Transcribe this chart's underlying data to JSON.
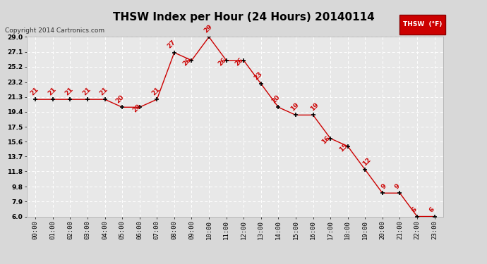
{
  "title": "THSW Index per Hour (24 Hours) 20140114",
  "copyright": "Copyright 2014 Cartronics.com",
  "legend_label": "THSW  (°F)",
  "hours": [
    0,
    1,
    2,
    3,
    4,
    5,
    6,
    7,
    8,
    9,
    10,
    11,
    12,
    13,
    14,
    15,
    16,
    17,
    18,
    19,
    20,
    21,
    22,
    23
  ],
  "values": [
    21,
    21,
    21,
    21,
    21,
    20,
    20,
    21,
    27,
    26,
    29,
    26,
    26,
    23,
    20,
    19,
    19,
    16,
    15,
    12,
    9,
    9,
    6,
    6
  ],
  "xlabels": [
    "00:00",
    "01:00",
    "02:00",
    "03:00",
    "04:00",
    "05:00",
    "06:00",
    "07:00",
    "08:00",
    "09:00",
    "10:00",
    "11:00",
    "12:00",
    "13:00",
    "14:00",
    "15:00",
    "16:00",
    "17:00",
    "18:00",
    "19:00",
    "20:00",
    "21:00",
    "22:00",
    "23:00"
  ],
  "ylim": [
    6.0,
    29.0
  ],
  "yticks": [
    6.0,
    7.9,
    9.8,
    11.8,
    13.7,
    15.6,
    17.5,
    19.4,
    21.3,
    23.2,
    25.2,
    27.1,
    29.0
  ],
  "ytick_labels": [
    "6.0",
    "7.9",
    "9.8",
    "11.8",
    "13.7",
    "15.6",
    "17.5",
    "19.4",
    "21.3",
    "23.2",
    "25.2",
    "27.1",
    "29.0"
  ],
  "line_color": "#cc0000",
  "bg_color": "#d8d8d8",
  "plot_bg": "#e8e8e8",
  "grid_color": "#ffffff",
  "title_fontsize": 11,
  "label_fontsize": 6.5,
  "data_label_fontsize": 6.5,
  "copyright_fontsize": 6.5,
  "data_label_offsets": [
    [
      -0.05,
      0.35
    ],
    [
      -0.05,
      0.35
    ],
    [
      -0.05,
      0.35
    ],
    [
      -0.05,
      0.35
    ],
    [
      -0.05,
      0.35
    ],
    [
      -0.15,
      0.35
    ],
    [
      -0.15,
      -0.85
    ],
    [
      -0.05,
      0.35
    ],
    [
      -0.15,
      0.35
    ],
    [
      -0.25,
      -0.85
    ],
    [
      -0.05,
      0.35
    ],
    [
      -0.25,
      -0.85
    ],
    [
      -0.25,
      -0.85
    ],
    [
      -0.15,
      0.35
    ],
    [
      -0.15,
      0.35
    ],
    [
      -0.05,
      0.35
    ],
    [
      0.1,
      0.35
    ],
    [
      -0.25,
      -0.85
    ],
    [
      -0.25,
      -0.85
    ],
    [
      0.1,
      0.35
    ],
    [
      0.1,
      0.35
    ],
    [
      -0.15,
      0.35
    ],
    [
      -0.15,
      0.35
    ],
    [
      -0.15,
      0.35
    ]
  ]
}
